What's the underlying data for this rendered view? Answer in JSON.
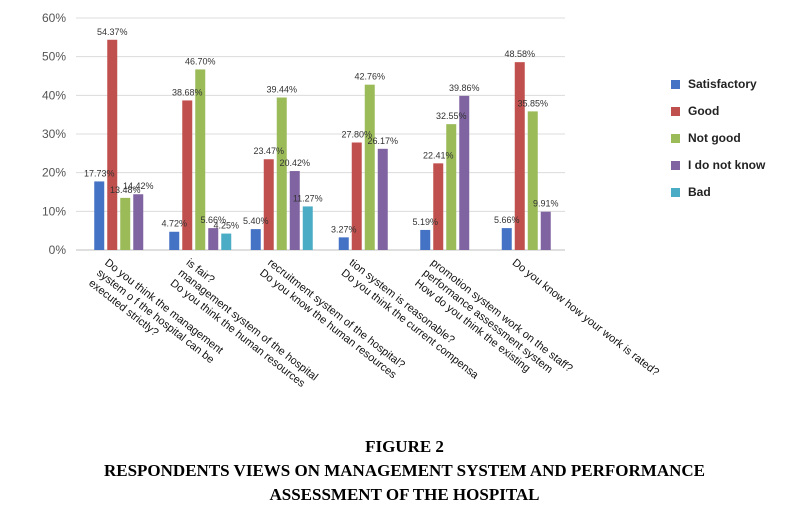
{
  "figure": {
    "label": "FIGURE 2",
    "caption_line1": "RESPONDENTS VIEWS ON MANAGEMENT SYSTEM AND PERFORMANCE",
    "caption_line2": "ASSESSMENT OF THE HOSPITAL"
  },
  "chart_data": {
    "type": "bar",
    "ylim": [
      0,
      60
    ],
    "yticks": [
      "0%",
      "10%",
      "20%",
      "30%",
      "40%",
      "50%",
      "60%"
    ],
    "grid": true,
    "legend_position": "right",
    "categories": [
      [
        "Do you think the management",
        "system o f the hospital can be",
        "executed strictly?"
      ],
      [
        "is fair?",
        "management system of the hospital",
        "Do you think the human resources"
      ],
      [
        "recruitment system of the hospital?",
        "Do you know the human resources"
      ],
      [
        "tion system is reasonable?",
        "Do you think the current compensa"
      ],
      [
        "promotion system work on the staff?",
        "performance assessment system",
        "How do you think the existing"
      ],
      [
        "Do you know how your work is rated?"
      ]
    ],
    "series": [
      {
        "name": "Satisfactory",
        "color": "#4472C4",
        "values": [
          17.73,
          4.72,
          5.4,
          3.27,
          5.19,
          5.66
        ],
        "labels": [
          "17.73%",
          "4.72%",
          "5.40%",
          "3.27%",
          "5.19%",
          "5.66%"
        ]
      },
      {
        "name": "Good",
        "color": "#C0504D",
        "values": [
          54.37,
          38.68,
          23.47,
          27.8,
          22.41,
          48.58
        ],
        "labels": [
          "54.37%",
          "38.68%",
          "23.47%",
          "27.80%",
          "22.41%",
          "48.58%"
        ]
      },
      {
        "name": "Not good",
        "color": "#9BBB59",
        "values": [
          13.48,
          46.7,
          39.44,
          42.76,
          32.55,
          35.85
        ],
        "labels": [
          "13.48%",
          "46.70%",
          "39.44%",
          "42.76%",
          "32.55%",
          "35.85%"
        ]
      },
      {
        "name": "I do not know",
        "color": "#8064A2",
        "values": [
          14.42,
          5.66,
          20.42,
          26.17,
          39.86,
          9.91
        ],
        "labels": [
          "14.42%",
          "5.66%",
          "20.42%",
          "26.17%",
          "39.86%",
          "9.91%"
        ]
      },
      {
        "name": "Bad",
        "color": "#4BACC6",
        "values": [
          null,
          4.25,
          11.27,
          null,
          null,
          null
        ],
        "labels": [
          null,
          "4.25%",
          "11.27%",
          null,
          null,
          null
        ]
      }
    ]
  }
}
